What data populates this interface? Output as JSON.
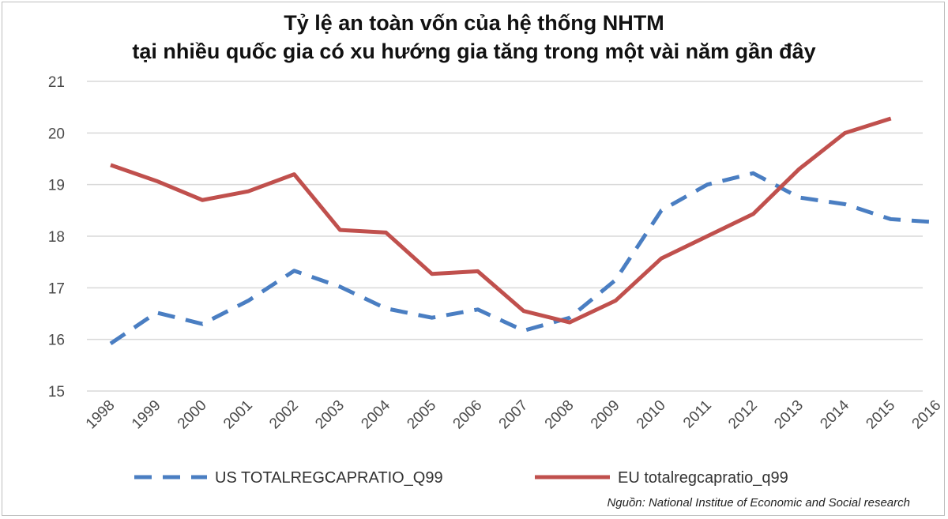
{
  "chart_data": {
    "type": "line",
    "title_line1": "Tỷ  lệ an toàn vốn của hệ thống NHTM",
    "title_line2": "tại nhiều quốc gia có xu hướng gia tăng trong một vài năm gần đây",
    "categories": [
      "1998",
      "1999",
      "2000",
      "2001",
      "2002",
      "2003",
      "2004",
      "2005",
      "2006",
      "2007",
      "2008",
      "2009",
      "2010",
      "2011",
      "2012",
      "2013",
      "2014",
      "2015",
      "2016"
    ],
    "ylim": [
      15,
      21
    ],
    "yticks": [
      "15",
      "16",
      "17",
      "18",
      "19",
      "20",
      "21"
    ],
    "grid": true,
    "legend_position": "bottom",
    "series": [
      {
        "name": "US TOTALREGCAPRATIO_Q99",
        "style": "dashed",
        "color": "#4a7ec2",
        "values": [
          15.92,
          16.52,
          16.3,
          16.75,
          17.33,
          17.02,
          16.6,
          16.42,
          16.58,
          16.17,
          16.42,
          17.15,
          18.5,
          19.0,
          19.22,
          18.75,
          18.62,
          18.33,
          18.27
        ]
      },
      {
        "name": "EU totalregcapratio_q99",
        "style": "solid",
        "color": "#c0504d",
        "values": [
          19.38,
          19.07,
          18.7,
          18.87,
          19.2,
          18.12,
          18.07,
          17.27,
          17.32,
          16.55,
          16.33,
          16.75,
          17.57,
          18.0,
          18.43,
          19.3,
          20.0,
          20.28,
          null
        ]
      }
    ]
  },
  "source_note": "Nguồn: National Institue of Economic and Social research"
}
